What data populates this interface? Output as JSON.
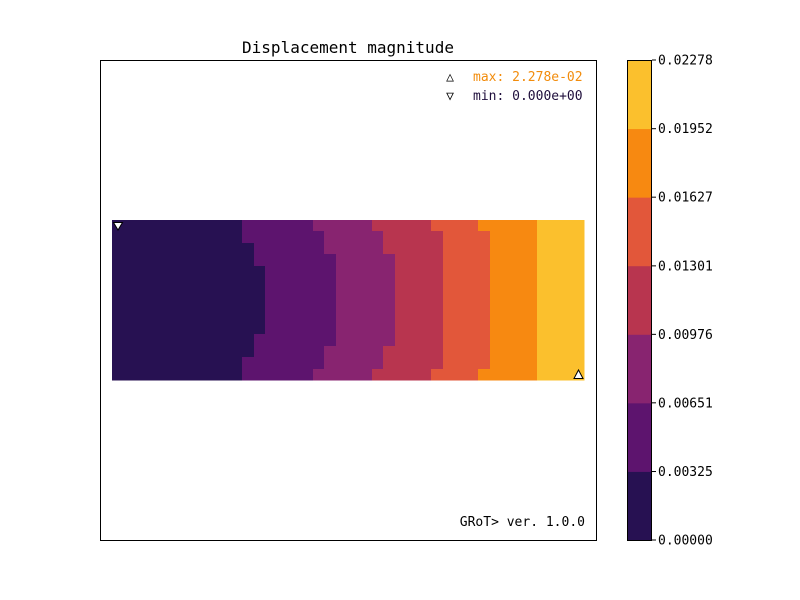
{
  "chart_data": {
    "type": "heatmap",
    "title": "Displacement magnitude",
    "max_annotation": "max: 2.278e-02",
    "min_annotation": "min: 0.000e+00",
    "version_text": "GRoT> ver. 1.0.0",
    "max_marker_symbol": "△",
    "min_marker_symbol": "▽",
    "grid": false,
    "colorbar": {
      "ticks": [
        "0.00000",
        "0.00325",
        "0.00651",
        "0.00976",
        "0.01301",
        "0.01627",
        "0.01952",
        "0.02278"
      ],
      "range": [
        0.0,
        0.02278
      ],
      "levels": [
        {
          "from": 0.0,
          "to": 0.00325,
          "color": "#271152"
        },
        {
          "from": 0.00325,
          "to": 0.00651,
          "color": "#5d146e"
        },
        {
          "from": 0.00651,
          "to": 0.00976,
          "color": "#882470"
        },
        {
          "from": 0.00976,
          "to": 0.01301,
          "color": "#b8354f"
        },
        {
          "from": 0.01301,
          "to": 0.01627,
          "color": "#e2573a"
        },
        {
          "from": 0.01627,
          "to": 0.01952,
          "color": "#f78911"
        },
        {
          "from": 0.01952,
          "to": 0.02278,
          "color": "#fbc02d"
        }
      ]
    },
    "colors": {
      "max_annotation": "#f28c0c",
      "min_annotation": "#1f0f3c"
    }
  }
}
